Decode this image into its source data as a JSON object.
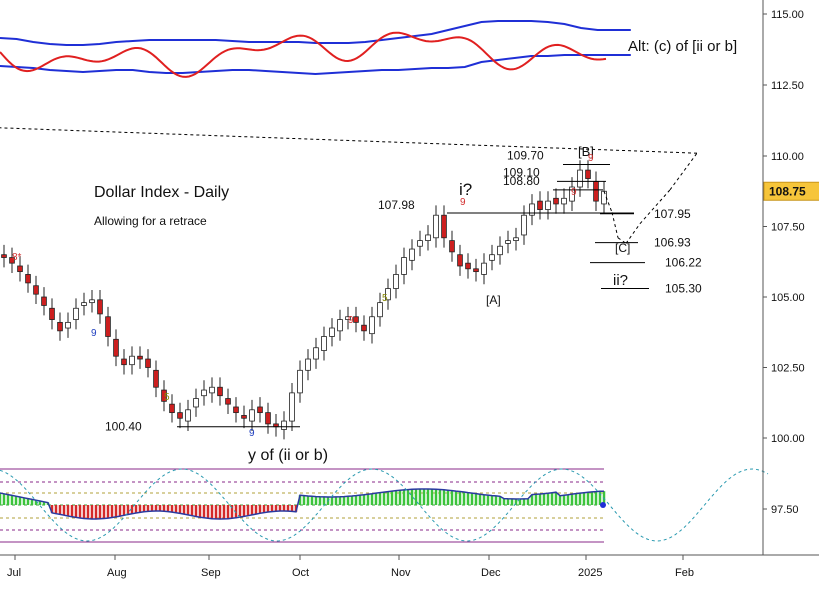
{
  "chart_data": {
    "type": "candlestick",
    "title": "Dollar Index - Daily",
    "subtitle": "Allowing for a retrace",
    "alt_label": "Alt: (c) of [ii or b]",
    "y_axis": {
      "ticks": [
        "115.00",
        "112.50",
        "110.00",
        "107.50",
        "105.00",
        "102.50",
        "100.00",
        "97.50"
      ],
      "last_price": "108.75"
    },
    "x_axis": {
      "ticks": [
        "Jul",
        "Aug",
        "Sep",
        "Oct",
        "Nov",
        "Dec",
        "2025",
        "Feb"
      ]
    },
    "price_closes": [
      106.4,
      106.2,
      105.9,
      105.5,
      105.1,
      104.7,
      104.2,
      103.8,
      104.1,
      104.6,
      104.8,
      104.9,
      104.4,
      103.6,
      102.9,
      102.6,
      102.9,
      102.8,
      102.5,
      101.8,
      101.3,
      100.9,
      100.7,
      101.0,
      101.4,
      101.7,
      101.8,
      101.5,
      101.2,
      100.9,
      100.7,
      101.0,
      100.9,
      100.5,
      100.4,
      100.6,
      101.6,
      102.4,
      102.8,
      103.2,
      103.6,
      103.9,
      104.2,
      104.3,
      104.1,
      103.8,
      104.3,
      104.8,
      105.3,
      105.8,
      106.4,
      106.7,
      107.0,
      107.2,
      107.9,
      107.1,
      106.6,
      106.1,
      106.0,
      105.9,
      106.2,
      106.5,
      106.8,
      107.0,
      107.1,
      107.9,
      108.3,
      108.1,
      108.4,
      108.3,
      108.5,
      108.9,
      109.5,
      109.2,
      108.4,
      108.75
    ],
    "price_opens": [
      106.5,
      106.4,
      106.1,
      105.8,
      105.4,
      105.0,
      104.6,
      104.1,
      103.9,
      104.2,
      104.7,
      104.8,
      104.9,
      104.3,
      103.5,
      102.8,
      102.6,
      102.9,
      102.8,
      102.4,
      101.7,
      101.2,
      100.9,
      100.6,
      101.1,
      101.5,
      101.6,
      101.8,
      101.4,
      101.1,
      100.8,
      100.6,
      101.1,
      100.9,
      100.5,
      100.3,
      100.6,
      101.6,
      102.4,
      102.8,
      103.1,
      103.6,
      103.8,
      104.2,
      104.3,
      104.0,
      103.7,
      104.3,
      104.9,
      105.3,
      105.8,
      106.3,
      106.8,
      107.0,
      107.1,
      107.9,
      107.0,
      106.5,
      106.2,
      106.0,
      105.8,
      106.3,
      106.5,
      106.9,
      107.0,
      107.2,
      107.9,
      108.4,
      108.1,
      108.5,
      108.3,
      108.4,
      108.9,
      109.5,
      109.1,
      108.3
    ],
    "forecast_path": [
      [
        108.75,
        108.0
      ],
      [
        108.0,
        107.1
      ],
      [
        107.1,
        106.9
      ],
      [
        106.9,
        107.6
      ],
      [
        107.6,
        108.8
      ],
      [
        108.8,
        110.1
      ],
      [
        110.1,
        111.0
      ]
    ],
    "price_levels": [
      {
        "label": "109.70",
        "value": 109.7
      },
      {
        "label": "109.10",
        "value": 109.1
      },
      {
        "label": "108.80",
        "value": 108.8
      },
      {
        "label": "107.98",
        "value": 107.98
      },
      {
        "label": "107.95",
        "value": 107.95
      },
      {
        "label": "106.93",
        "value": 106.93
      },
      {
        "label": "106.22",
        "value": 106.22
      },
      {
        "label": "105.30",
        "value": 105.3
      },
      {
        "label": "100.40",
        "value": 100.4
      }
    ],
    "wave_labels": [
      "i?",
      "[B]",
      "[A]",
      "[C]",
      "ii?",
      "y of (ii or b)"
    ],
    "count_labels": [
      {
        "text": "8*",
        "color": "#d32f2f"
      },
      {
        "text": "9",
        "color": "#1f3fbf"
      },
      {
        "text": "5",
        "color": "#8a8a00"
      },
      {
        "text": "9",
        "color": "#1f3fbf"
      },
      {
        "text": "9",
        "color": "#d32f2f"
      },
      {
        "text": "5",
        "color": "#8a8a00"
      },
      {
        "text": "9",
        "color": "#d32f2f"
      },
      {
        "text": "9",
        "color": "#d32f2f"
      },
      {
        "text": "9",
        "color": "#d32f2f"
      }
    ],
    "colors": {
      "bull_candle": "#ffffff",
      "bear_candle": "#cc1f1f",
      "candle_outline": "#222222",
      "oscillator_line": "#e02020",
      "band_line": "#1f2fd6",
      "histogram_positive": "#3cc43c",
      "histogram_negative": "#d42a2a",
      "cycle_line": "#2a9ab0",
      "level_line": "#000000"
    },
    "grid": false
  }
}
